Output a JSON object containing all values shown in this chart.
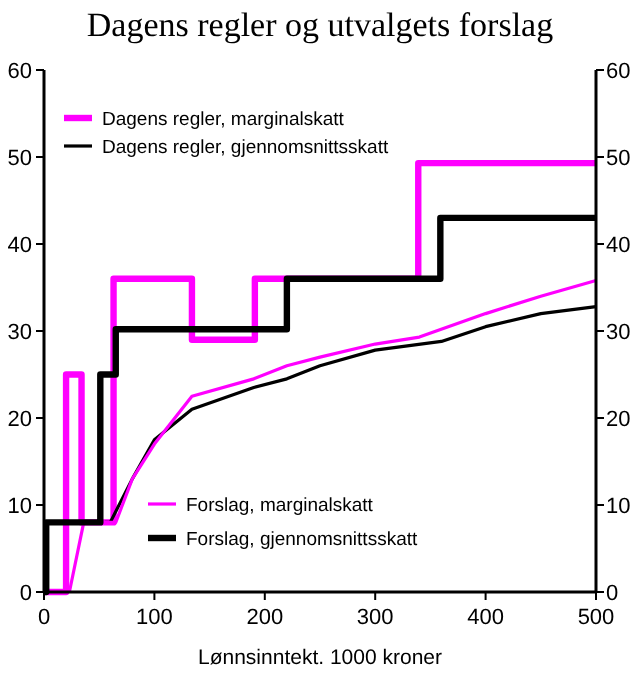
{
  "chart_data": {
    "type": "line",
    "title": "Dagens regler og utvalgets forslag",
    "xlabel": "Lønnsinntekt. 1000 kroner",
    "xlim": [
      0,
      500
    ],
    "xticks": [
      0,
      100,
      200,
      300,
      400,
      500
    ],
    "ylim": [
      0,
      60
    ],
    "yticks": [
      0,
      10,
      20,
      30,
      40,
      50,
      60
    ],
    "y2lim": [
      0,
      60
    ],
    "y2ticks": [
      0,
      10,
      20,
      30,
      40,
      50,
      60
    ],
    "legend": "top left",
    "grid": false,
    "series": [
      {
        "name": "Dagens regler, marginalskatt",
        "type": "step",
        "color": "#ff00ff",
        "x": [
          0,
          20,
          34,
          63,
          134,
          191,
          339,
          500
        ],
        "values": [
          0,
          25,
          8,
          36,
          29,
          36,
          49.3,
          49.3
        ]
      },
      {
        "name": "Dagens regler, gjennomsnittsskatt",
        "type": "line",
        "color": "#000000",
        "x": [
          55,
          60,
          80,
          100,
          134,
          190,
          220,
          250,
          300,
          360,
          400,
          450,
          500
        ],
        "values": [
          8,
          8,
          13,
          17.5,
          21,
          23.5,
          24.5,
          26,
          27.8,
          28.8,
          30.5,
          32,
          32.8
        ]
      },
      {
        "name": "Forslag, marginalskatt",
        "type": "line",
        "color": "#ff00ff",
        "x": [
          23,
          36,
          60,
          65,
          80,
          100,
          134,
          190,
          220,
          250,
          300,
          340,
          400,
          450,
          500
        ],
        "values": [
          0,
          8,
          8,
          8,
          13,
          17,
          22.5,
          24.5,
          26,
          27,
          28.5,
          29.3,
          32,
          34,
          35.8
        ]
      },
      {
        "name": "Forslag, gjennomsnittsskatt",
        "type": "step",
        "color": "#000000",
        "x": [
          0,
          2,
          51,
          65,
          220,
          359,
          500
        ],
        "values": [
          0,
          8,
          25,
          30.2,
          36,
          43,
          43
        ]
      }
    ]
  }
}
